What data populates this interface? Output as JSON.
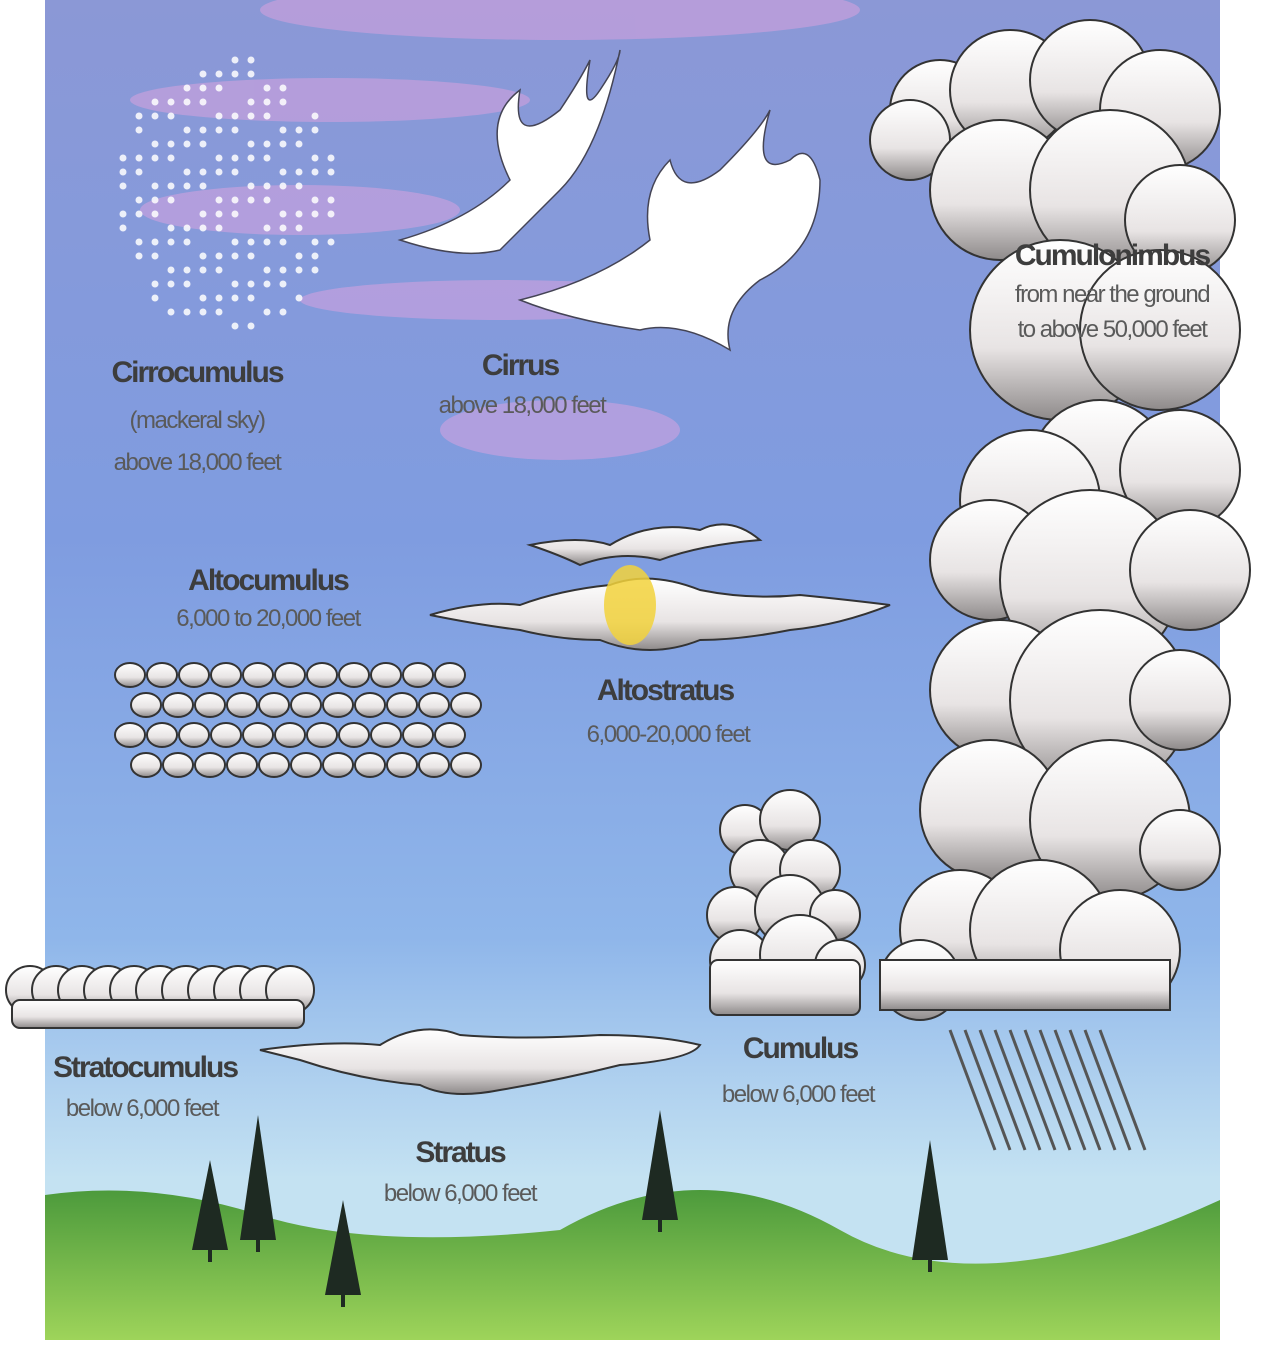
{
  "clouds": [
    {
      "name": "Cirrocumulus",
      "note": "(mackeral sky)",
      "altitude": "above 18,000 feet"
    },
    {
      "name": "Cirrus",
      "altitude": "above 18,000 feet"
    },
    {
      "name": "Cumulonimbus",
      "altitude": [
        "from near the ground",
        "to above 50,000 feet"
      ]
    },
    {
      "name": "Altocumulus",
      "altitude": "6,000 to 20,000 feet"
    },
    {
      "name": "Altostratus",
      "altitude": "6,000-20,000 feet"
    },
    {
      "name": "Stratocumulus",
      "altitude": "below 6,000 feet"
    },
    {
      "name": "Stratus",
      "altitude": "below 6,000 feet"
    },
    {
      "name": "Cumulus",
      "altitude": "below 6,000 feet"
    }
  ]
}
